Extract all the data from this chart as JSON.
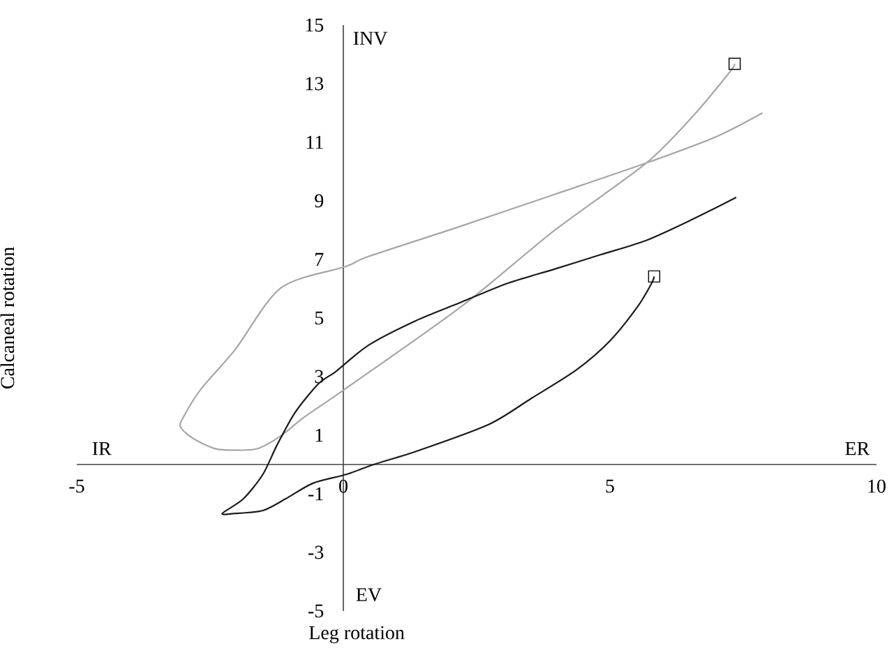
{
  "chart_data": {
    "type": "line",
    "xlabel": "Leg rotation",
    "ylabel": "Calcaneal rotation",
    "xlim": [
      -5,
      10
    ],
    "ylim": [
      -5,
      15
    ],
    "xticks": [
      -5,
      0,
      5,
      10
    ],
    "yticks": [
      -5,
      -3,
      -1,
      1,
      3,
      5,
      7,
      9,
      11,
      13,
      15
    ],
    "annotations": [
      "IR",
      "ER",
      "INV",
      "EV"
    ],
    "marker": "none",
    "line_style": "solid",
    "series": [
      {
        "color": "#a6a6a6",
        "x": [
          7.86,
          6.98,
          5.68,
          3.96,
          2.21,
          0.47,
          0.05,
          -1.17,
          -2.03,
          -2.66,
          -3.0,
          -3.05,
          -2.81,
          -2.4,
          -2.03,
          -1.61,
          -1.17,
          -0.73,
          0.05,
          2.21,
          3.96,
          5.68,
          6.56,
          7.24,
          7.34
        ],
        "values": [
          12.0,
          11.18,
          10.29,
          9.22,
          8.14,
          7.1,
          6.76,
          6.03,
          3.92,
          2.6,
          1.62,
          1.27,
          0.88,
          0.54,
          0.49,
          0.54,
          0.98,
          1.62,
          2.6,
          5.39,
          7.99,
          10.29,
          11.9,
          13.38,
          13.68
        ]
      },
      {
        "color": "#1a1a1a",
        "x": [
          7.37,
          6.56,
          5.68,
          4.82,
          3.96,
          3.07,
          2.21,
          1.35,
          0.47,
          -0.13,
          -0.47,
          -0.91,
          -1.25,
          -1.51,
          -1.88,
          -2.27,
          -2.03,
          -1.51,
          -1.09,
          -0.57,
          0.05,
          0.57,
          1.43,
          2.73,
          3.52,
          4.38,
          5.0,
          5.52,
          5.78,
          5.83
        ],
        "values": [
          9.12,
          8.38,
          7.65,
          7.16,
          6.67,
          6.18,
          5.54,
          4.9,
          4.07,
          3.19,
          2.75,
          1.76,
          0.64,
          -0.34,
          -1.18,
          -1.67,
          -1.67,
          -1.57,
          -1.18,
          -0.64,
          -0.34,
          0,
          0.49,
          1.37,
          2.25,
          3.24,
          4.22,
          5.39,
          6.18,
          6.42
        ]
      },
      {
        "type": "scatter",
        "marker": "square",
        "color": "#000000",
        "x": [
          7.34
        ],
        "values": [
          13.68
        ]
      },
      {
        "type": "scatter",
        "marker": "square",
        "color": "#000000",
        "x": [
          5.83
        ],
        "values": [
          6.42
        ]
      }
    ]
  }
}
